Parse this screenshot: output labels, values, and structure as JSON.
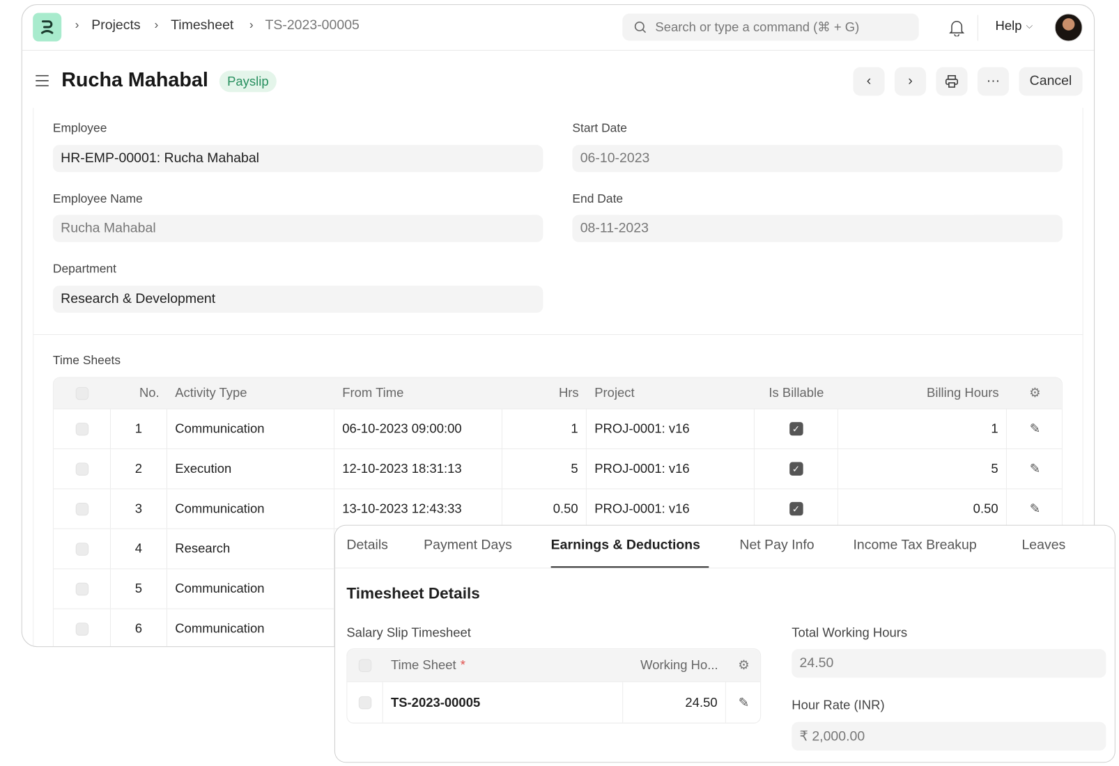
{
  "breadcrumbs": [
    "Projects",
    "Timesheet",
    "TS-2023-00005"
  ],
  "search": {
    "placeholder": "Search or type a command (⌘ + G)"
  },
  "help_label": "Help",
  "header": {
    "title": "Rucha Mahabal",
    "badge": "Payslip",
    "cancel_label": "Cancel"
  },
  "form": {
    "employee_label": "Employee",
    "employee_value": "HR-EMP-00001: Rucha Mahabal",
    "employee_name_label": "Employee Name",
    "employee_name_value": "Rucha Mahabal",
    "department_label": "Department",
    "department_value": "Research & Development",
    "start_date_label": "Start Date",
    "start_date_value": "06-10-2023",
    "end_date_label": "End Date",
    "end_date_value": "08-11-2023"
  },
  "timesheets": {
    "label": "Time Sheets",
    "columns": [
      "No.",
      "Activity Type",
      "From Time",
      "Hrs",
      "Project",
      "Is Billable",
      "Billing Hours"
    ],
    "rows": [
      {
        "no": "1",
        "activity": "Communication",
        "from": "06-10-2023 09:00:00",
        "hrs": "1",
        "project": "PROJ-0001: v16",
        "billable": true,
        "billing_hours": "1"
      },
      {
        "no": "2",
        "activity": "Execution",
        "from": "12-10-2023 18:31:13",
        "hrs": "5",
        "project": "PROJ-0001: v16",
        "billable": true,
        "billing_hours": "5"
      },
      {
        "no": "3",
        "activity": "Communication",
        "from": "13-10-2023 12:43:33",
        "hrs": "0.50",
        "project": "PROJ-0001: v16",
        "billable": true,
        "billing_hours": "0.50"
      },
      {
        "no": "4",
        "activity": "Research"
      },
      {
        "no": "5",
        "activity": "Communication"
      },
      {
        "no": "6",
        "activity": "Communication"
      }
    ]
  },
  "popup": {
    "tabs": [
      "Details",
      "Payment Days",
      "Earnings & Deductions",
      "Net Pay Info",
      "Income Tax Breakup",
      "Leaves"
    ],
    "active_tab": "Earnings & Deductions",
    "section_title": "Timesheet Details",
    "sst_label": "Salary Slip Timesheet",
    "sst_columns": [
      "Time Sheet",
      "Working Ho..."
    ],
    "required_mark": "*",
    "sst_rows": [
      {
        "time_sheet": "TS-2023-00005",
        "working_hours": "24.50"
      }
    ],
    "total_hours_label": "Total Working Hours",
    "total_hours_value": "24.50",
    "hour_rate_label": "Hour Rate (INR)",
    "hour_rate_value": "₹ 2,000.00"
  },
  "colors": {
    "logo_bg": "#a8ebcd",
    "badge_bg": "#e4f5ea",
    "badge_text": "#278f5e",
    "required": "#e0514d"
  }
}
